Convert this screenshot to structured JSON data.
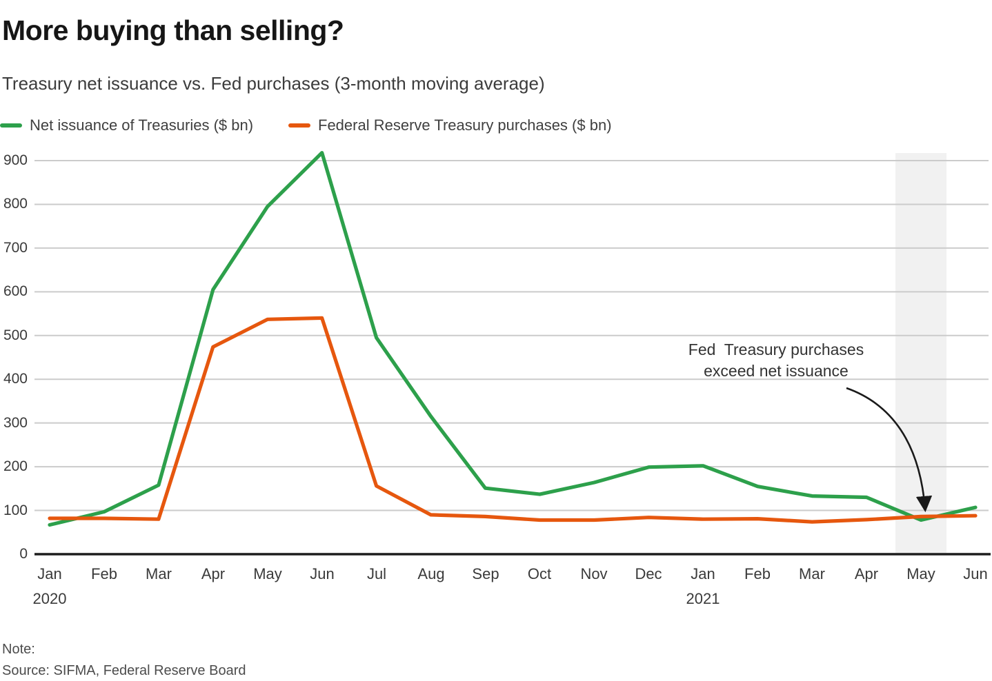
{
  "header": {
    "title": "More buying than selling?",
    "subtitle": "Treasury net issuance vs. Fed purchases (3-month moving average)"
  },
  "legend": {
    "items": [
      {
        "label": "Net issuance of Treasuries ($ bn)",
        "color": "#2da04b"
      },
      {
        "label": "Federal Reserve Treasury purchases ($ bn)",
        "color": "#e6570e"
      }
    ]
  },
  "chart_data": {
    "type": "line",
    "x": [
      "Jan",
      "Feb",
      "Mar",
      "Apr",
      "May",
      "Jun",
      "Jul",
      "Aug",
      "Sep",
      "Oct",
      "Nov",
      "Dec",
      "Jan",
      "Feb",
      "Mar",
      "Apr",
      "May",
      "Jun"
    ],
    "x_year_labels": [
      {
        "index": 0,
        "label": "2020"
      },
      {
        "index": 12,
        "label": "2021"
      }
    ],
    "yticks": [
      0,
      100,
      200,
      300,
      400,
      500,
      600,
      700,
      800,
      900
    ],
    "ylim": [
      0,
      920
    ],
    "grid": true,
    "legend_position": "top",
    "series": [
      {
        "name": "Net issuance of Treasuries ($ bn)",
        "color": "#2da04b",
        "values": [
          67,
          97,
          158,
          605,
          795,
          918,
          495,
          315,
          151,
          137,
          164,
          199,
          202,
          155,
          133,
          130,
          78,
          107
        ]
      },
      {
        "name": "Federal Reserve Treasury purchases ($ bn)",
        "color": "#e6570e",
        "values": [
          82,
          82,
          80,
          474,
          537,
          540,
          156,
          90,
          86,
          78,
          78,
          84,
          80,
          81,
          74,
          79,
          86,
          88
        ]
      }
    ],
    "highlight_band": {
      "x_index": 16,
      "month": "May 2021"
    },
    "annotation": {
      "text": "Fed  Treasury purchases\nexceed net issuance",
      "points_to": "May 2021"
    }
  },
  "footer": {
    "note_label": "Note:",
    "source": "Source: SIFMA, Federal Reserve Board"
  }
}
